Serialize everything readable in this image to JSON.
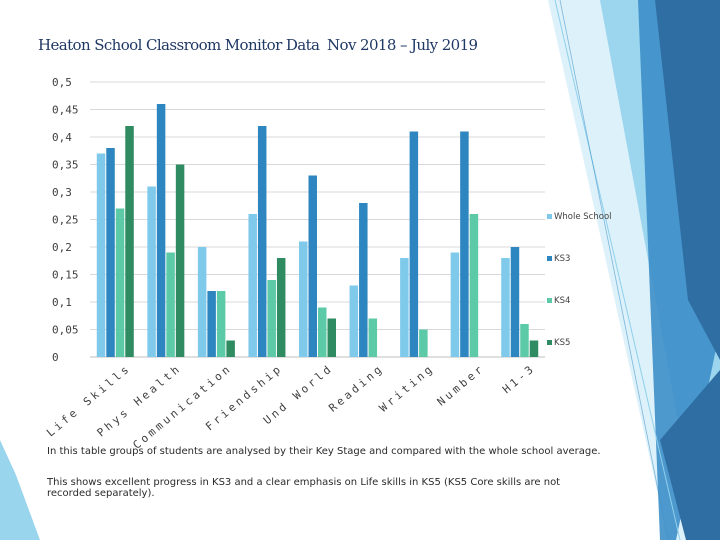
{
  "header": {
    "title_left": "Heaton School Classroom Monitor Data",
    "title_right": "Nov 2018 – July 2019"
  },
  "captions": [
    "In this table groups of students are analysed by their Key Stage and compared with the whole school average.",
    "This shows excellent progress in KS3 and a clear emphasis on Life skills in KS5 (KS5 Core skills are not recorded separately)."
  ],
  "colors": {
    "whole_school": "#7fcaeb",
    "ks3": "#2e86c1",
    "ks4": "#5cc9a7",
    "ks5": "#2e8b62",
    "deco_dark": "#2f6ea3",
    "deco_mid": "#3d8fc9",
    "deco_light": "#8fd0ec",
    "deco_pale": "#cdebf7"
  },
  "chart_data": {
    "type": "bar",
    "title": "",
    "xlabel": "",
    "ylabel": "",
    "ylim": [
      0,
      0.5
    ],
    "y_ticks": [
      "0",
      "0,05",
      "0,1",
      "0,15",
      "0,2",
      "0,25",
      "0,3",
      "0,35",
      "0,4",
      "0,45",
      "0,5"
    ],
    "grid": true,
    "legend_position": "right",
    "categories": [
      "Life Skills",
      "Phys Health",
      "Communication",
      "Friendship",
      "Und World",
      "Reading",
      "Writing",
      "Number",
      "H1-3"
    ],
    "series": [
      {
        "name": "Whole School",
        "values": [
          0.37,
          0.31,
          0.2,
          0.26,
          0.21,
          0.13,
          0.18,
          0.19,
          0.18
        ]
      },
      {
        "name": "KS3",
        "values": [
          0.38,
          0.46,
          0.12,
          0.42,
          0.33,
          0.28,
          0.41,
          0.41,
          0.2
        ]
      },
      {
        "name": "KS4",
        "values": [
          0.27,
          0.19,
          0.12,
          0.14,
          0.09,
          0.07,
          0.05,
          0.26,
          0.06
        ]
      },
      {
        "name": "KS5",
        "values": [
          0.42,
          0.35,
          0.03,
          0.18,
          0.07,
          0,
          0,
          0,
          0.03
        ]
      }
    ]
  }
}
